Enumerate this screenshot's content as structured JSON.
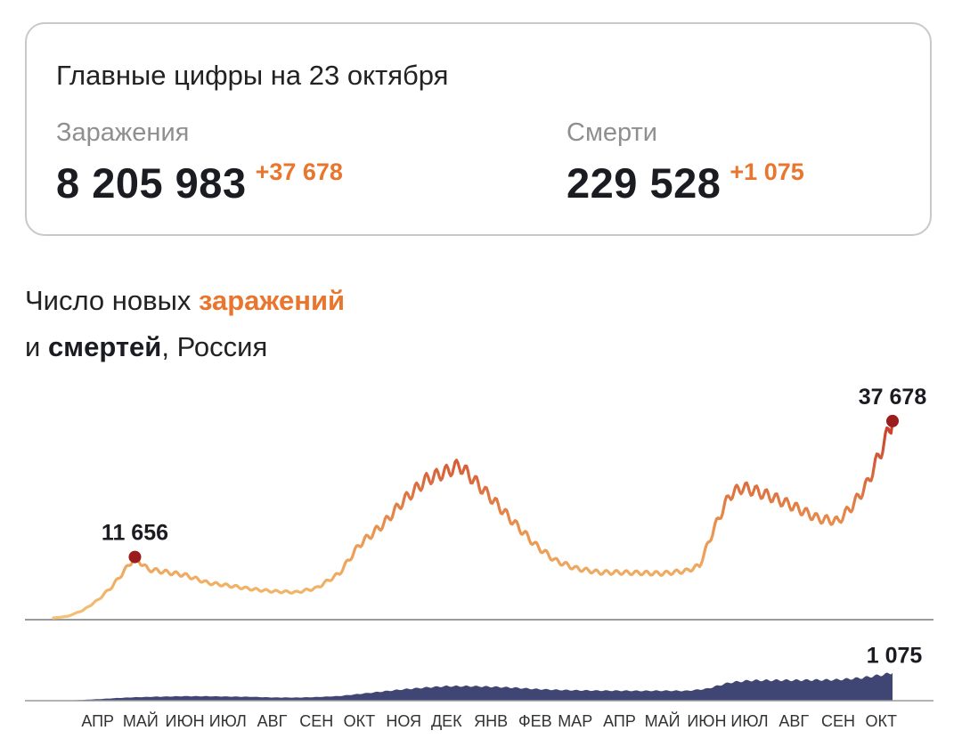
{
  "summary": {
    "title": "Главные цифры на 23 октября",
    "infections": {
      "label": "Заражения",
      "total": "8 205 983",
      "delta": "+37 678"
    },
    "deaths": {
      "label": "Смерти",
      "total": "229 528",
      "delta": "+1 075"
    }
  },
  "heading": {
    "line1_prefix": "Число новых ",
    "line1_highlight": "заражений",
    "line2_prefix": "и ",
    "line2_highlight": "смертей",
    "line2_suffix": ", Россия"
  },
  "colors": {
    "accent_orange": "#e8762e",
    "infection_low": "#f3c375",
    "infection_high": "#c73a2a",
    "deaths_fill": "#3f4673",
    "marker": "#9b1c1c",
    "baseline": "#9a9a9a"
  },
  "chart_data": {
    "type": "area",
    "x_months": [
      "АПР",
      "МАЙ",
      "ИЮН",
      "ИЮЛ",
      "АВГ",
      "СЕН",
      "ОКТ",
      "НОЯ",
      "ДЕК",
      "ЯНВ",
      "ФЕВ",
      "МАР",
      "АПР",
      "МАЙ",
      "ИЮН",
      "ИЮЛ",
      "АВГ",
      "СЕН",
      "ОКТ"
    ],
    "x_range": [
      "2020-03-15",
      "2021-10-23"
    ],
    "infections": {
      "ylim": [
        0,
        38000
      ],
      "points": [
        [
          "2020-03-15",
          0
        ],
        [
          "2020-03-25",
          300
        ],
        [
          "2020-04-05",
          1500
        ],
        [
          "2020-04-15",
          3400
        ],
        [
          "2020-04-25",
          6000
        ],
        [
          "2020-05-05",
          9500
        ],
        [
          "2020-05-11",
          11656
        ],
        [
          "2020-05-20",
          9300
        ],
        [
          "2020-06-01",
          8800
        ],
        [
          "2020-06-15",
          8200
        ],
        [
          "2020-07-01",
          6700
        ],
        [
          "2020-07-15",
          6200
        ],
        [
          "2020-08-01",
          5500
        ],
        [
          "2020-08-15",
          5100
        ],
        [
          "2020-09-01",
          4900
        ],
        [
          "2020-09-15",
          5700
        ],
        [
          "2020-10-01",
          8500
        ],
        [
          "2020-10-15",
          14000
        ],
        [
          "2020-11-01",
          18000
        ],
        [
          "2020-11-15",
          22500
        ],
        [
          "2020-12-01",
          26500
        ],
        [
          "2020-12-15",
          28000
        ],
        [
          "2020-12-24",
          29200
        ],
        [
          "2021-01-01",
          27000
        ],
        [
          "2021-01-15",
          23000
        ],
        [
          "2021-02-01",
          18000
        ],
        [
          "2021-02-15",
          14000
        ],
        [
          "2021-03-01",
          11000
        ],
        [
          "2021-03-15",
          9500
        ],
        [
          "2021-04-01",
          8700
        ],
        [
          "2021-04-15",
          8700
        ],
        [
          "2021-05-01",
          8600
        ],
        [
          "2021-05-15",
          8500
        ],
        [
          "2021-06-01",
          9000
        ],
        [
          "2021-06-10",
          10000
        ],
        [
          "2021-06-20",
          17000
        ],
        [
          "2021-07-01",
          23500
        ],
        [
          "2021-07-10",
          25000
        ],
        [
          "2021-07-20",
          24200
        ],
        [
          "2021-08-01",
          23000
        ],
        [
          "2021-08-15",
          21300
        ],
        [
          "2021-09-01",
          19000
        ],
        [
          "2021-09-15",
          18500
        ],
        [
          "2021-09-25",
          21500
        ],
        [
          "2021-10-05",
          25500
        ],
        [
          "2021-10-15",
          32000
        ],
        [
          "2021-10-23",
          37678
        ]
      ],
      "annotations": [
        {
          "date": "2020-05-11",
          "value": 11656,
          "label": "11 656"
        },
        {
          "date": "2021-10-23",
          "value": 37678,
          "label": "37 678"
        }
      ]
    },
    "deaths": {
      "ylim": [
        0,
        1100
      ],
      "points": [
        [
          "2020-03-15",
          0
        ],
        [
          "2020-04-01",
          20
        ],
        [
          "2020-04-15",
          60
        ],
        [
          "2020-05-01",
          110
        ],
        [
          "2020-05-15",
          140
        ],
        [
          "2020-06-01",
          160
        ],
        [
          "2020-06-15",
          175
        ],
        [
          "2020-07-01",
          170
        ],
        [
          "2020-07-15",
          160
        ],
        [
          "2020-08-01",
          150
        ],
        [
          "2020-08-15",
          125
        ],
        [
          "2020-09-01",
          120
        ],
        [
          "2020-09-15",
          140
        ],
        [
          "2020-10-01",
          180
        ],
        [
          "2020-10-15",
          260
        ],
        [
          "2020-11-01",
          360
        ],
        [
          "2020-11-15",
          440
        ],
        [
          "2020-12-01",
          510
        ],
        [
          "2020-12-15",
          560
        ],
        [
          "2021-01-01",
          560
        ],
        [
          "2021-01-15",
          540
        ],
        [
          "2021-02-01",
          500
        ],
        [
          "2021-02-15",
          450
        ],
        [
          "2021-03-01",
          420
        ],
        [
          "2021-03-15",
          400
        ],
        [
          "2021-04-01",
          390
        ],
        [
          "2021-04-15",
          385
        ],
        [
          "2021-05-01",
          380
        ],
        [
          "2021-05-15",
          385
        ],
        [
          "2021-06-01",
          380
        ],
        [
          "2021-06-15",
          460
        ],
        [
          "2021-07-01",
          700
        ],
        [
          "2021-07-15",
          780
        ],
        [
          "2021-08-01",
          790
        ],
        [
          "2021-08-15",
          790
        ],
        [
          "2021-09-01",
          800
        ],
        [
          "2021-09-15",
          810
        ],
        [
          "2021-10-01",
          880
        ],
        [
          "2021-10-15",
          990
        ],
        [
          "2021-10-23",
          1075
        ]
      ],
      "annotations": [
        {
          "date": "2021-10-23",
          "value": 1075,
          "label": "1 075"
        }
      ]
    }
  }
}
